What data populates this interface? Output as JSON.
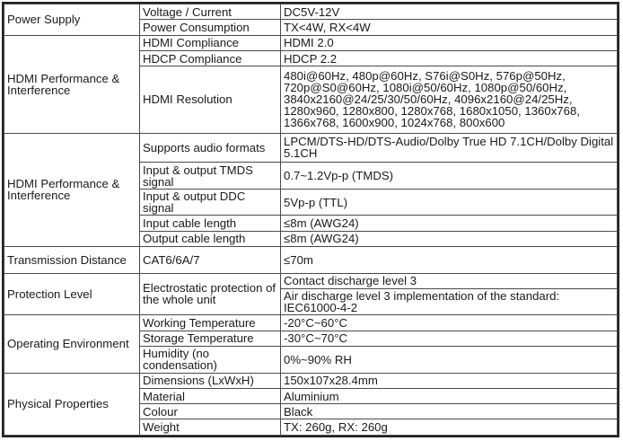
{
  "rows": {
    "power_supply": "Power Supply",
    "voltage_current": "Voltage / Current",
    "voltage_current_val": "DC5V-12V",
    "power_consumption": "Power Consumption",
    "power_consumption_val": "TX<4W, RX<4W",
    "hdmi_perf_1": "HDMI Performance & Interference",
    "hdmi_compliance": "HDMI Compliance",
    "hdmi_compliance_val": "HDMI 2.0",
    "hdcp_compliance": "HDCP Compliance",
    "hdcp_compliance_val": "HDCP 2.2",
    "hdmi_resolution": "HDMI Resolution",
    "hdmi_resolution_val": "480i@60Hz, 480p@60Hz, S76i@S0Hz, 576p@50Hz, 720p@S0@60Hz, 1080i@50/60Hz, 1080p@50/60Hz, 3840x2160@24/25/30/50/60Hz, 4096x2160@24/25Hz, 1280x960, 1280x800, 1280x768, 1680x1050, 1360x768, 1366x768, 1600x900, 1024x768, 800x600",
    "hdmi_perf_2": "HDMI Performance & Interference",
    "audio_formats": "Supports audio formats",
    "audio_formats_val": "LPCM/DTS-HD/DTS-Audio/Dolby True HD 7.1CH/Dolby Digital 5.1CH",
    "tmds": "Input & output TMDS signal",
    "tmds_val": "0.7~1.2Vp-p (TMDS)",
    "ddc": "Input & output DDC signal",
    "ddc_val": "5Vp-p (TTL)",
    "input_cable": "Input cable length",
    "input_cable_val": "≤8m (AWG24)",
    "output_cable": "Output cable length",
    "output_cable_val": "≤8m (AWG24)",
    "transmission": "Transmission Distance",
    "transmission_sub": "CAT6/6A/7",
    "transmission_val": "≤70m",
    "protection": "Protection Level",
    "esd": "Electrostatic protection of the whole unit",
    "esd_val_1": "Contact discharge level 3",
    "esd_val_2": "Air discharge level 3 implementation of the standard: IEC61000-4-2",
    "operating_env": "Operating Environment",
    "working_temp": "Working Temperature",
    "working_temp_val": "-20°C~60°C",
    "storage_temp": "Storage Temperature",
    "storage_temp_val": "-30°C~70°C",
    "humidity": "Humidity (no condensation)",
    "humidity_val": "0%~90% RH",
    "physical": "Physical Properties",
    "dimensions": "Dimensions (LxWxH)",
    "dimensions_val": "150x107x28.4mm",
    "material": "Material",
    "material_val": "Aluminium",
    "colour": "Colour",
    "colour_val": "Black",
    "weight": "Weight",
    "weight_val": "TX: 260g, RX: 260g"
  }
}
